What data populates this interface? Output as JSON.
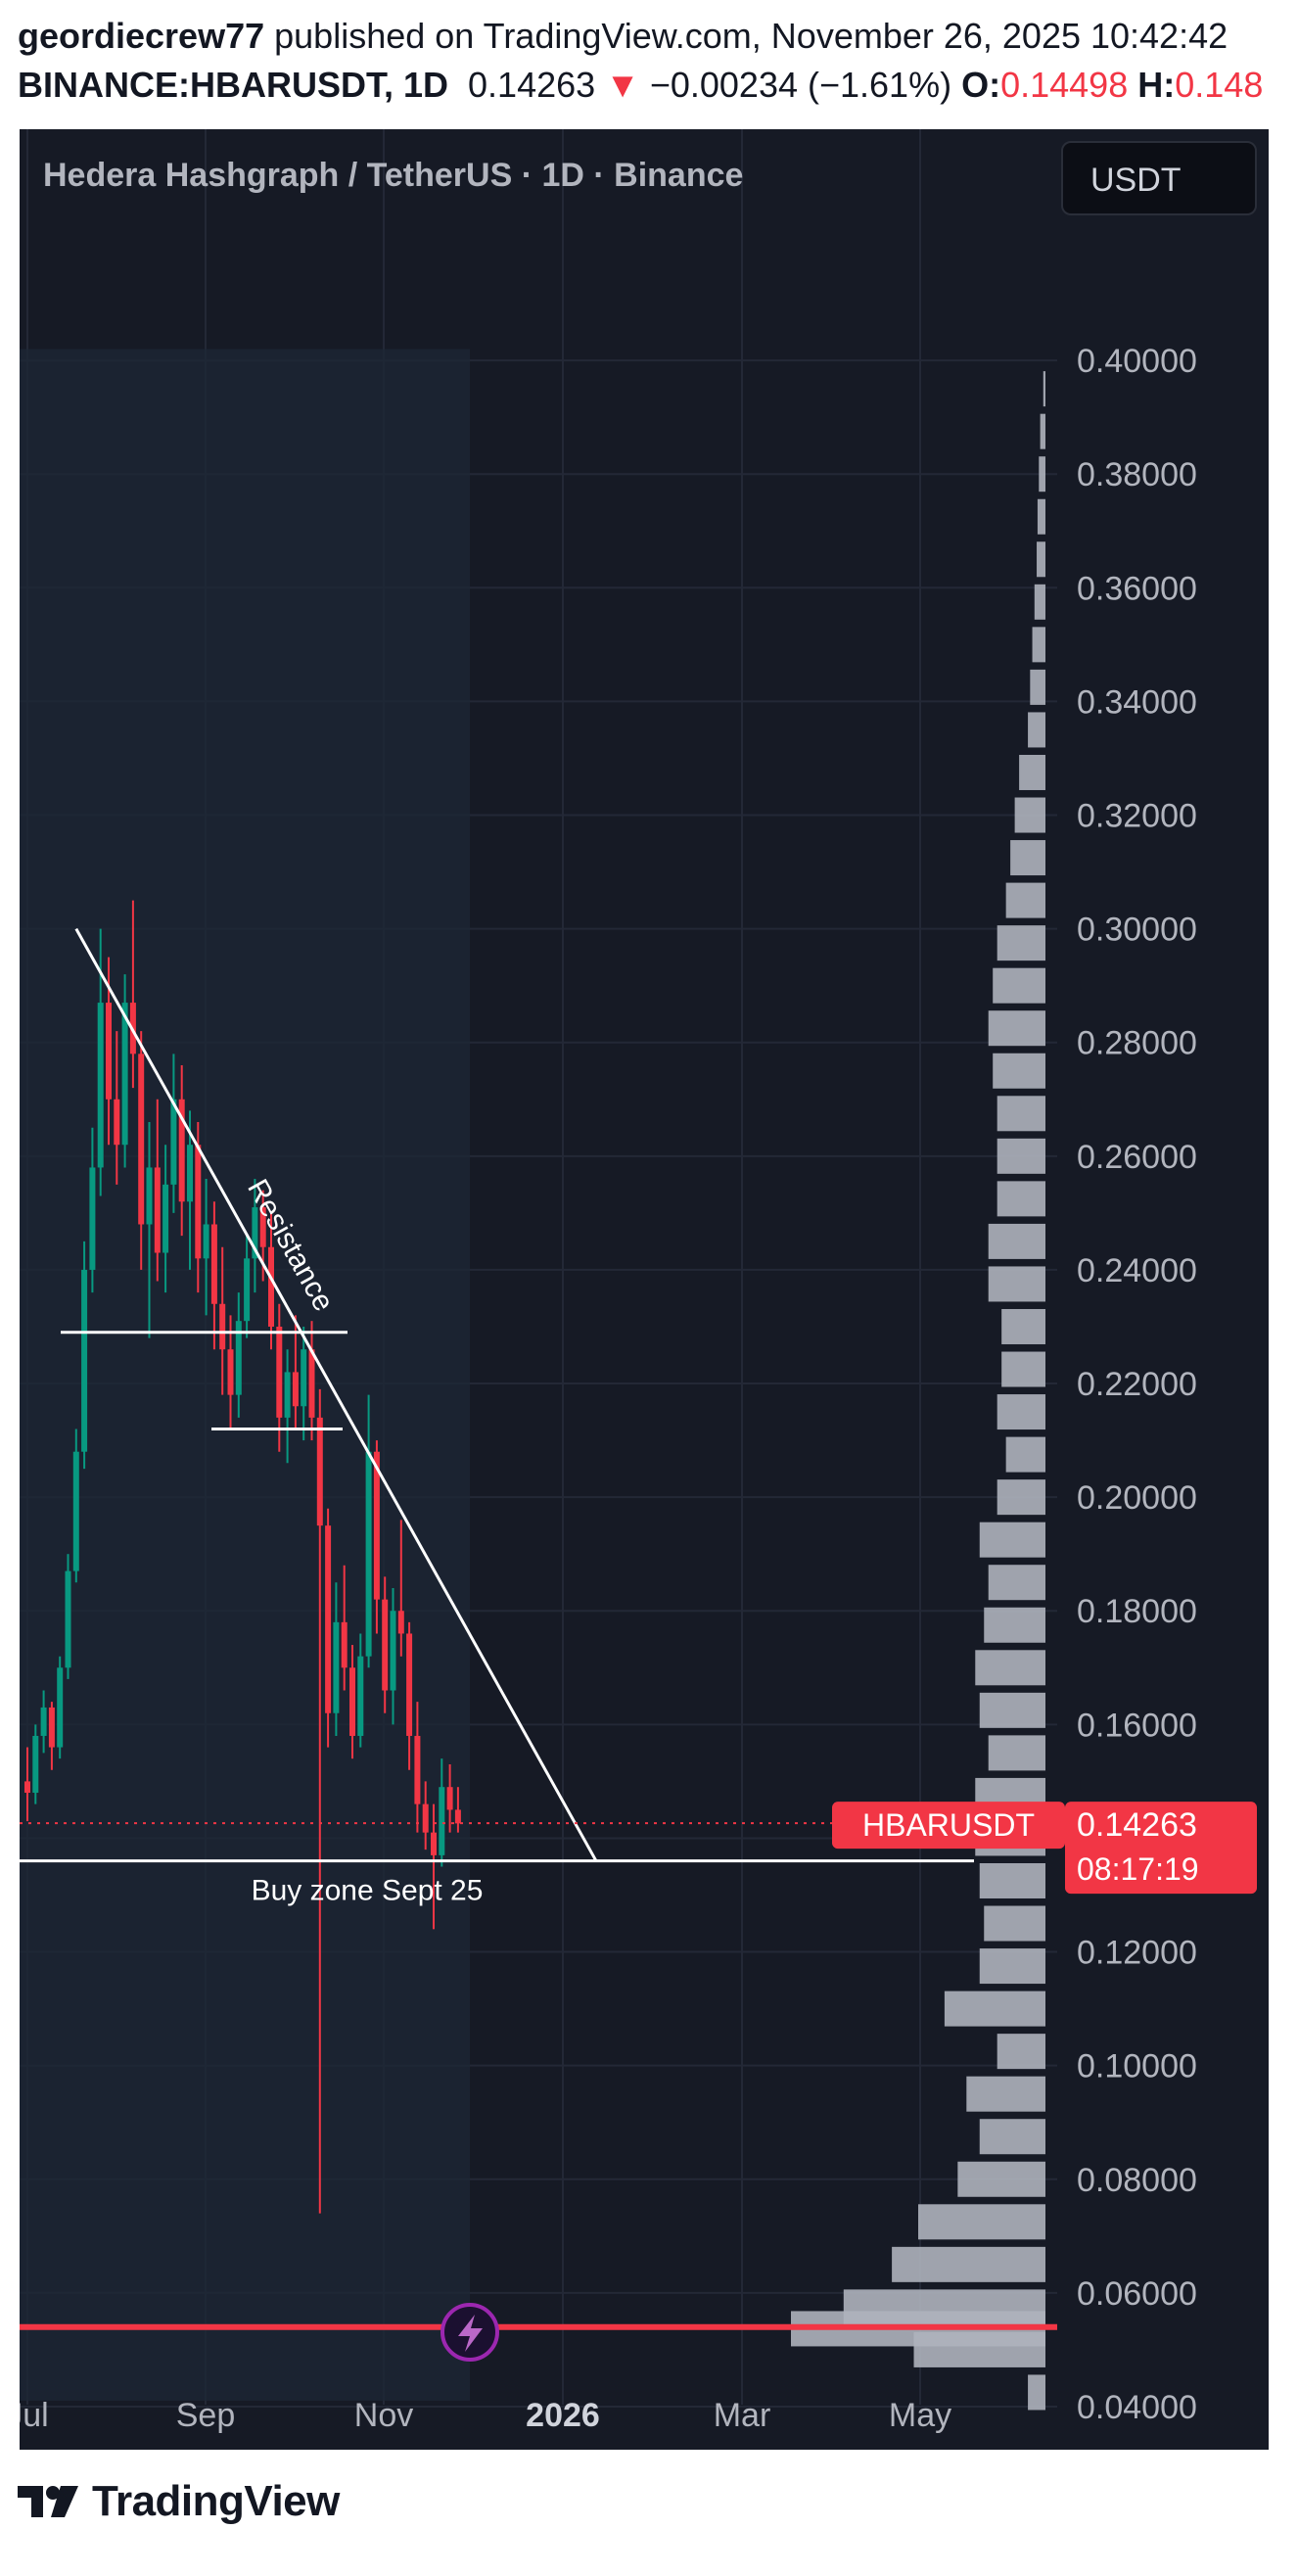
{
  "header": {
    "author": "geordiecrew77",
    "published_text": "published on TradingView.com, November 26, 2025 10:42:42",
    "symbol": "BINANCE:HBARUSDT, 1D",
    "price": "0.14263",
    "change_icon": "down-triangle-icon",
    "change": "−0.00234 (−1.61%)",
    "open_label": "O:",
    "open_value": "0.14498",
    "high_label": "H:",
    "high_value": "0.148"
  },
  "chart": {
    "title": "Hedera Hashgraph / TetherUS · 1D · Binance",
    "currency_button": "USDT",
    "last_price_tag": {
      "symbol": "HBARUSDT",
      "price": "0.14263",
      "countdown": "08:17:19"
    }
  },
  "footer": {
    "logo_icon": "tradingview-logo-icon",
    "brand": "TradingView"
  },
  "colors": {
    "background": "#161a25",
    "up": "#089981",
    "down": "#f23645",
    "volume_profile": "#aeb2bd",
    "annotation": "#ffffff"
  },
  "chart_data": {
    "type": "candlestick",
    "y_ticks": [
      "0.40000",
      "0.38000",
      "0.36000",
      "0.34000",
      "0.32000",
      "0.30000",
      "0.28000",
      "0.26000",
      "0.24000",
      "0.22000",
      "0.20000",
      "0.18000",
      "0.16000",
      "0.14000",
      "0.12000",
      "0.10000",
      "0.08000",
      "0.06000",
      "0.04000"
    ],
    "x_ticks": [
      "Jul",
      "Sep",
      "Nov",
      "2026",
      "Mar",
      "May"
    ],
    "ylim": [
      0.035,
      0.42
    ],
    "last_price": 0.14263,
    "candles": [
      {
        "o": 0.15,
        "h": 0.156,
        "l": 0.143,
        "c": 0.148
      },
      {
        "o": 0.148,
        "h": 0.16,
        "l": 0.146,
        "c": 0.158
      },
      {
        "o": 0.158,
        "h": 0.166,
        "l": 0.155,
        "c": 0.163
      },
      {
        "o": 0.163,
        "h": 0.164,
        "l": 0.152,
        "c": 0.156
      },
      {
        "o": 0.156,
        "h": 0.172,
        "l": 0.154,
        "c": 0.17
      },
      {
        "o": 0.17,
        "h": 0.19,
        "l": 0.168,
        "c": 0.187
      },
      {
        "o": 0.187,
        "h": 0.212,
        "l": 0.185,
        "c": 0.208
      },
      {
        "o": 0.208,
        "h": 0.245,
        "l": 0.205,
        "c": 0.24
      },
      {
        "o": 0.24,
        "h": 0.265,
        "l": 0.236,
        "c": 0.258
      },
      {
        "o": 0.258,
        "h": 0.3,
        "l": 0.253,
        "c": 0.287
      },
      {
        "o": 0.287,
        "h": 0.295,
        "l": 0.262,
        "c": 0.27
      },
      {
        "o": 0.27,
        "h": 0.282,
        "l": 0.255,
        "c": 0.262
      },
      {
        "o": 0.262,
        "h": 0.292,
        "l": 0.258,
        "c": 0.287
      },
      {
        "o": 0.287,
        "h": 0.305,
        "l": 0.272,
        "c": 0.278
      },
      {
        "o": 0.278,
        "h": 0.282,
        "l": 0.24,
        "c": 0.248
      },
      {
        "o": 0.248,
        "h": 0.266,
        "l": 0.228,
        "c": 0.258
      },
      {
        "o": 0.258,
        "h": 0.27,
        "l": 0.238,
        "c": 0.243
      },
      {
        "o": 0.243,
        "h": 0.262,
        "l": 0.236,
        "c": 0.255
      },
      {
        "o": 0.255,
        "h": 0.278,
        "l": 0.25,
        "c": 0.27
      },
      {
        "o": 0.27,
        "h": 0.276,
        "l": 0.246,
        "c": 0.252
      },
      {
        "o": 0.252,
        "h": 0.268,
        "l": 0.24,
        "c": 0.262
      },
      {
        "o": 0.262,
        "h": 0.266,
        "l": 0.236,
        "c": 0.242
      },
      {
        "o": 0.242,
        "h": 0.256,
        "l": 0.232,
        "c": 0.248
      },
      {
        "o": 0.248,
        "h": 0.252,
        "l": 0.226,
        "c": 0.234
      },
      {
        "o": 0.234,
        "h": 0.244,
        "l": 0.218,
        "c": 0.226
      },
      {
        "o": 0.226,
        "h": 0.232,
        "l": 0.212,
        "c": 0.218
      },
      {
        "o": 0.218,
        "h": 0.236,
        "l": 0.214,
        "c": 0.231
      },
      {
        "o": 0.231,
        "h": 0.246,
        "l": 0.228,
        "c": 0.242
      },
      {
        "o": 0.242,
        "h": 0.256,
        "l": 0.236,
        "c": 0.251
      },
      {
        "o": 0.251,
        "h": 0.254,
        "l": 0.238,
        "c": 0.244
      },
      {
        "o": 0.244,
        "h": 0.25,
        "l": 0.226,
        "c": 0.23
      },
      {
        "o": 0.23,
        "h": 0.234,
        "l": 0.208,
        "c": 0.214
      },
      {
        "o": 0.214,
        "h": 0.226,
        "l": 0.206,
        "c": 0.222
      },
      {
        "o": 0.222,
        "h": 0.232,
        "l": 0.212,
        "c": 0.216
      },
      {
        "o": 0.216,
        "h": 0.23,
        "l": 0.21,
        "c": 0.226
      },
      {
        "o": 0.226,
        "h": 0.231,
        "l": 0.21,
        "c": 0.214
      },
      {
        "o": 0.214,
        "h": 0.219,
        "l": 0.074,
        "c": 0.195
      },
      {
        "o": 0.195,
        "h": 0.198,
        "l": 0.156,
        "c": 0.162
      },
      {
        "o": 0.162,
        "h": 0.185,
        "l": 0.158,
        "c": 0.178
      },
      {
        "o": 0.178,
        "h": 0.188,
        "l": 0.166,
        "c": 0.17
      },
      {
        "o": 0.17,
        "h": 0.174,
        "l": 0.154,
        "c": 0.158
      },
      {
        "o": 0.158,
        "h": 0.176,
        "l": 0.156,
        "c": 0.172
      },
      {
        "o": 0.172,
        "h": 0.218,
        "l": 0.17,
        "c": 0.208
      },
      {
        "o": 0.208,
        "h": 0.21,
        "l": 0.176,
        "c": 0.182
      },
      {
        "o": 0.182,
        "h": 0.186,
        "l": 0.162,
        "c": 0.166
      },
      {
        "o": 0.166,
        "h": 0.184,
        "l": 0.16,
        "c": 0.18
      },
      {
        "o": 0.18,
        "h": 0.196,
        "l": 0.172,
        "c": 0.176
      },
      {
        "o": 0.176,
        "h": 0.178,
        "l": 0.152,
        "c": 0.158
      },
      {
        "o": 0.158,
        "h": 0.164,
        "l": 0.141,
        "c": 0.146
      },
      {
        "o": 0.146,
        "h": 0.15,
        "l": 0.138,
        "c": 0.141
      },
      {
        "o": 0.141,
        "h": 0.146,
        "l": 0.124,
        "c": 0.137
      },
      {
        "o": 0.137,
        "h": 0.154,
        "l": 0.135,
        "c": 0.149
      },
      {
        "o": 0.149,
        "h": 0.153,
        "l": 0.141,
        "c": 0.145
      },
      {
        "o": 0.145,
        "h": 0.149,
        "l": 0.141,
        "c": 0.1426
      }
    ],
    "volume_profile": [
      {
        "price": 0.0425,
        "vol": 0.04
      },
      {
        "price": 0.05,
        "vol": 0.3
      },
      {
        "price": 0.0537,
        "vol": 0.58
      },
      {
        "price": 0.0575,
        "vol": 0.46
      },
      {
        "price": 0.065,
        "vol": 0.35
      },
      {
        "price": 0.0725,
        "vol": 0.29
      },
      {
        "price": 0.08,
        "vol": 0.2
      },
      {
        "price": 0.0875,
        "vol": 0.15
      },
      {
        "price": 0.095,
        "vol": 0.18
      },
      {
        "price": 0.1025,
        "vol": 0.11
      },
      {
        "price": 0.11,
        "vol": 0.23
      },
      {
        "price": 0.1175,
        "vol": 0.15
      },
      {
        "price": 0.125,
        "vol": 0.14
      },
      {
        "price": 0.1325,
        "vol": 0.15
      },
      {
        "price": 0.14,
        "vol": 0.16
      },
      {
        "price": 0.1475,
        "vol": 0.16
      },
      {
        "price": 0.155,
        "vol": 0.13
      },
      {
        "price": 0.1625,
        "vol": 0.15
      },
      {
        "price": 0.17,
        "vol": 0.16
      },
      {
        "price": 0.1775,
        "vol": 0.14
      },
      {
        "price": 0.185,
        "vol": 0.13
      },
      {
        "price": 0.1925,
        "vol": 0.15
      },
      {
        "price": 0.2,
        "vol": 0.11
      },
      {
        "price": 0.2075,
        "vol": 0.09
      },
      {
        "price": 0.215,
        "vol": 0.11
      },
      {
        "price": 0.2225,
        "vol": 0.1
      },
      {
        "price": 0.23,
        "vol": 0.1
      },
      {
        "price": 0.2375,
        "vol": 0.13
      },
      {
        "price": 0.245,
        "vol": 0.13
      },
      {
        "price": 0.2525,
        "vol": 0.11
      },
      {
        "price": 0.26,
        "vol": 0.11
      },
      {
        "price": 0.2675,
        "vol": 0.11
      },
      {
        "price": 0.275,
        "vol": 0.12
      },
      {
        "price": 0.2825,
        "vol": 0.13
      },
      {
        "price": 0.29,
        "vol": 0.12
      },
      {
        "price": 0.2975,
        "vol": 0.11
      },
      {
        "price": 0.305,
        "vol": 0.09
      },
      {
        "price": 0.3125,
        "vol": 0.08
      },
      {
        "price": 0.32,
        "vol": 0.07
      },
      {
        "price": 0.3275,
        "vol": 0.06
      },
      {
        "price": 0.335,
        "vol": 0.04
      },
      {
        "price": 0.3425,
        "vol": 0.035
      },
      {
        "price": 0.35,
        "vol": 0.03
      },
      {
        "price": 0.3575,
        "vol": 0.025
      },
      {
        "price": 0.365,
        "vol": 0.02
      },
      {
        "price": 0.3725,
        "vol": 0.018
      },
      {
        "price": 0.38,
        "vol": 0.015
      },
      {
        "price": 0.3875,
        "vol": 0.012
      },
      {
        "price": 0.395,
        "vol": 0.005
      }
    ],
    "annotations": [
      {
        "type": "trendline",
        "label": "Resistance",
        "from": {
          "candle": 6,
          "price": 0.3
        },
        "to": {
          "candle": 70,
          "price": 0.136
        }
      },
      {
        "type": "horizontal",
        "label": "Buy zone Sept 25",
        "price": 0.136
      },
      {
        "type": "horizontal",
        "price": 0.229
      },
      {
        "type": "horizontal",
        "price": 0.212
      },
      {
        "type": "horizontal",
        "price": 0.054,
        "color": "#f23645"
      }
    ]
  }
}
